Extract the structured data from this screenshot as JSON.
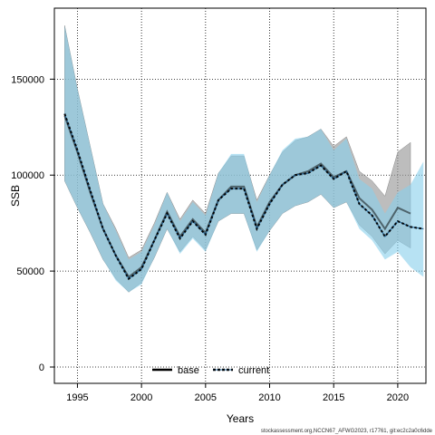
{
  "chart_data": {
    "type": "line",
    "xlabel": "Years",
    "ylabel": "SSB",
    "xlim": [
      1993.2,
      2022.2
    ],
    "ylim": [
      -8500,
      187000
    ],
    "x_ticks": [
      1995,
      2000,
      2005,
      2010,
      2015,
      2020
    ],
    "y_ticks": [
      0,
      50000,
      100000,
      150000
    ],
    "y_tick_labels": [
      "0",
      "50000",
      "100000",
      "150000"
    ],
    "x_tick_labels": [
      "1995",
      "2000",
      "2005",
      "2010",
      "2015",
      "2020"
    ],
    "grid": true,
    "legend_position": "bottom-center",
    "series": [
      {
        "name": "base",
        "color": "#000000",
        "ci_color": "#999999",
        "x": [
          1994,
          1995,
          1996,
          1997,
          1998,
          1999,
          2000,
          2001,
          2002,
          2003,
          2004,
          2005,
          2006,
          2007,
          2008,
          2009,
          2010,
          2011,
          2012,
          2013,
          2014,
          2015,
          2016,
          2017,
          2018,
          2019,
          2020,
          2021
        ],
        "values": [
          131000,
          112000,
          91000,
          72000,
          58000,
          47000,
          52000,
          66000,
          81000,
          68000,
          77000,
          70000,
          87000,
          94000,
          94000,
          73000,
          86000,
          95000,
          100000,
          102000,
          106000,
          99000,
          102000,
          88000,
          82000,
          72000,
          83000,
          80000
        ],
        "lower": [
          97000,
          83000,
          70000,
          56000,
          46000,
          39000,
          44000,
          57000,
          72000,
          60000,
          68000,
          61000,
          76000,
          80000,
          80000,
          61000,
          71000,
          80000,
          84000,
          86000,
          90000,
          83000,
          86000,
          74000,
          68000,
          59000,
          66000,
          62000
        ],
        "upper": [
          178000,
          145000,
          115000,
          85000,
          72000,
          57000,
          61000,
          75000,
          91000,
          77000,
          87000,
          80000,
          101000,
          110000,
          110000,
          87000,
          100000,
          112000,
          118000,
          120000,
          124000,
          115000,
          120000,
          102000,
          97000,
          89000,
          112000,
          117000
        ]
      },
      {
        "name": "current",
        "color": "#1a5a8c",
        "ci_color": "#87ceeb",
        "x": [
          1994,
          1995,
          1996,
          1997,
          1998,
          1999,
          2000,
          2001,
          2002,
          2003,
          2004,
          2005,
          2006,
          2007,
          2008,
          2009,
          2010,
          2011,
          2012,
          2013,
          2014,
          2015,
          2016,
          2017,
          2018,
          2019,
          2020,
          2021,
          2022
        ],
        "values": [
          132000,
          113000,
          92000,
          72000,
          58000,
          46000,
          51000,
          66000,
          80000,
          67000,
          76000,
          69000,
          87000,
          93000,
          93000,
          72000,
          85000,
          95000,
          100000,
          101000,
          105000,
          98000,
          102000,
          85000,
          79000,
          68000,
          76000,
          73000,
          72000
        ],
        "lower": [
          97000,
          83000,
          70000,
          56000,
          45000,
          39000,
          43000,
          57000,
          72000,
          59000,
          67000,
          60000,
          76000,
          80000,
          80000,
          60000,
          71000,
          80000,
          84000,
          86000,
          90000,
          83000,
          86000,
          72000,
          66000,
          56000,
          60000,
          52000,
          47000
        ],
        "upper": [
          178000,
          145000,
          115000,
          85000,
          71000,
          56000,
          60000,
          74000,
          91000,
          76000,
          86000,
          79000,
          101000,
          111000,
          111000,
          86000,
          100000,
          113000,
          119000,
          120000,
          124000,
          113000,
          119000,
          98000,
          93000,
          80000,
          91000,
          95000,
          107000
        ]
      }
    ],
    "footnote": "stockassessment.org,NCCN67_AFWG2023, r17761, git:ec2c2a0c6dde"
  }
}
